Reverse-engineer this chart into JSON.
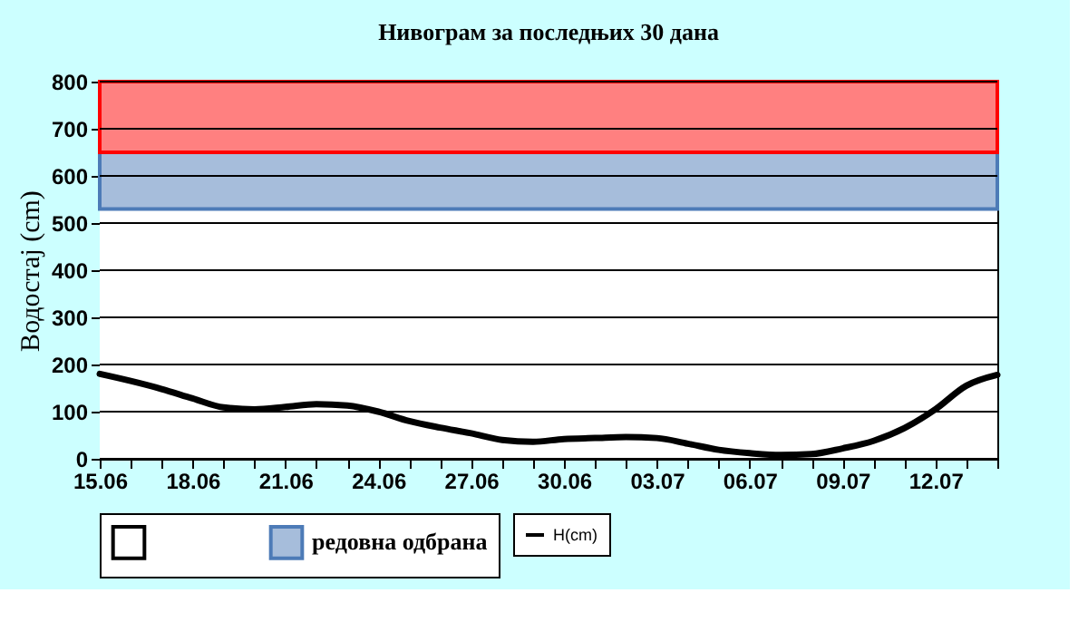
{
  "chart_data": {
    "type": "line",
    "title": "Нивограм за последњих 30 дана",
    "ylabel": "Водостај (cm)",
    "categories": [
      "15.06",
      null,
      null,
      "18.06",
      null,
      null,
      "21.06",
      null,
      null,
      "24.06",
      null,
      null,
      "27.06",
      null,
      null,
      "30.06",
      null,
      null,
      "03.07",
      null,
      null,
      "06.07",
      null,
      null,
      "09.07",
      null,
      null,
      "12.07",
      null,
      null
    ],
    "series": [
      {
        "name": "H(cm)",
        "color": "#000000",
        "values": [
          180,
          165,
          148,
          128,
          109,
          105,
          110,
          116,
          113,
          100,
          80,
          66,
          54,
          40,
          36,
          42,
          44,
          46,
          44,
          32,
          19,
          12,
          8,
          10,
          22,
          38,
          65,
          105,
          155,
          178
        ]
      }
    ],
    "ylim": [
      0,
      800
    ],
    "yticks": [
      0,
      100,
      200,
      300,
      400,
      500,
      600,
      700,
      800
    ],
    "bands": [
      {
        "axis": "y",
        "from": 0,
        "to": 530,
        "label": null,
        "color": "#ffffff"
      },
      {
        "axis": "y",
        "from": 530,
        "to": 650,
        "label": "редовна одбрана",
        "color": "#a6bddb"
      },
      {
        "axis": "y",
        "from": 650,
        "to": 800,
        "label": null,
        "color": "#ff8080"
      }
    ],
    "grid": "y",
    "legend": "bottom",
    "marker": "none",
    "line_style": "solid"
  }
}
